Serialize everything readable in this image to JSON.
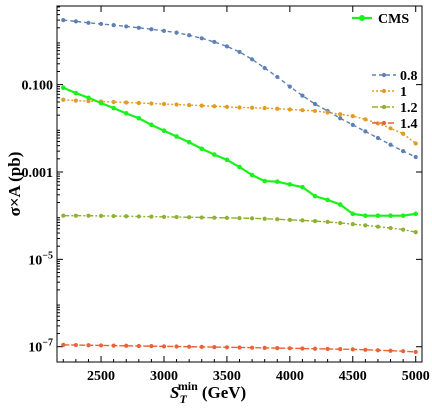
{
  "chart_data": {
    "type": "line",
    "xlabel_main": "S",
    "xlabel_sub": "T",
    "xlabel_sup": "min",
    "xlabel_unit": "(GeV)",
    "ylabel": "σ×A (pb)",
    "xlim": [
      2150,
      5050
    ],
    "ylim_log10": [
      -7.35,
      0.8
    ],
    "y_scale": "log",
    "x_ticks": [
      2500,
      3000,
      3500,
      4000,
      4500,
      5000
    ],
    "y_ticks": [
      {
        "value": 0.1,
        "label": "0.100"
      },
      {
        "value": 0.001,
        "label": "0.001"
      },
      {
        "value": 1e-05,
        "label": "10",
        "sup": "−5"
      },
      {
        "value": 1e-07,
        "label": "10",
        "sup": "−7"
      }
    ],
    "legend_title": "CMS",
    "legend": [
      "0.8",
      "1",
      "1.2",
      "1.4"
    ],
    "colors": {
      "cms": "#19f219",
      "s08": "#5e81b5",
      "s1": "#e19c24",
      "s12": "#8fb032",
      "s14": "#eb6235"
    },
    "x": [
      2200,
      2300,
      2400,
      2500,
      2600,
      2700,
      2800,
      2900,
      3000,
      3100,
      3200,
      3300,
      3400,
      3500,
      3600,
      3700,
      3800,
      3900,
      4000,
      4100,
      4200,
      4300,
      4400,
      4500,
      4600,
      4700,
      4800,
      4900,
      5000
    ],
    "cms": [
      0.085,
      0.064,
      0.05,
      0.038,
      0.029,
      0.022,
      0.017,
      0.012,
      0.0088,
      0.0065,
      0.0048,
      0.0034,
      0.0025,
      0.0019,
      0.0013,
      0.00085,
      0.00062,
      0.0006,
      0.00052,
      0.00045,
      0.00028,
      0.00023,
      0.00018,
      0.00011,
      0.0001,
      0.0001,
      0.0001,
      0.0001,
      0.00011
    ],
    "series": [
      {
        "name": "0.8",
        "color": "#5e81b5",
        "dash": "4,3",
        "values": [
          3.0,
          2.8,
          2.6,
          2.45,
          2.3,
          2.15,
          2.0,
          1.85,
          1.7,
          1.55,
          1.35,
          1.15,
          0.95,
          0.75,
          0.56,
          0.38,
          0.24,
          0.15,
          0.09,
          0.056,
          0.036,
          0.025,
          0.017,
          0.012,
          0.0085,
          0.006,
          0.0042,
          0.003,
          0.0022
        ]
      },
      {
        "name": "1",
        "color": "#e19c24",
        "dash": "2,2",
        "values": [
          0.045,
          0.043,
          0.042,
          0.041,
          0.04,
          0.039,
          0.038,
          0.037,
          0.036,
          0.035,
          0.034,
          0.033,
          0.032,
          0.031,
          0.03,
          0.0295,
          0.029,
          0.028,
          0.027,
          0.026,
          0.025,
          0.023,
          0.021,
          0.019,
          0.016,
          0.013,
          0.01,
          0.0075,
          0.0045
        ]
      },
      {
        "name": "1.2",
        "color": "#8fb032",
        "dash": "6,2,2,2",
        "values": [
          0.0001,
          0.0001,
          0.0001,
          9.9e-05,
          9.8e-05,
          9.7e-05,
          9.6e-05,
          9.5e-05,
          9.4e-05,
          9.3e-05,
          9.2e-05,
          9.1e-05,
          9e-05,
          8.9e-05,
          8.8e-05,
          8.7e-05,
          8.5e-05,
          8.3e-05,
          8e-05,
          7.8e-05,
          7.5e-05,
          7.2e-05,
          6.8e-05,
          6.4e-05,
          6e-05,
          5.6e-05,
          5.2e-05,
          4.8e-05,
          4.2e-05
        ]
      },
      {
        "name": "1.4",
        "color": "#eb6235",
        "dash": "6,2",
        "values": [
          1.1e-07,
          1.09e-07,
          1.08e-07,
          1.07e-07,
          1.06e-07,
          1.05e-07,
          1.04e-07,
          1.03e-07,
          1.02e-07,
          1.01e-07,
          1e-07,
          9.9e-08,
          9.8e-08,
          9.7e-08,
          9.6e-08,
          9.5e-08,
          9.4e-08,
          9.3e-08,
          9.2e-08,
          9.1e-08,
          9e-08,
          8.9e-08,
          8.8e-08,
          8.7e-08,
          8.5e-08,
          8.3e-08,
          8.1e-08,
          7.9e-08,
          7.6e-08
        ]
      }
    ]
  }
}
